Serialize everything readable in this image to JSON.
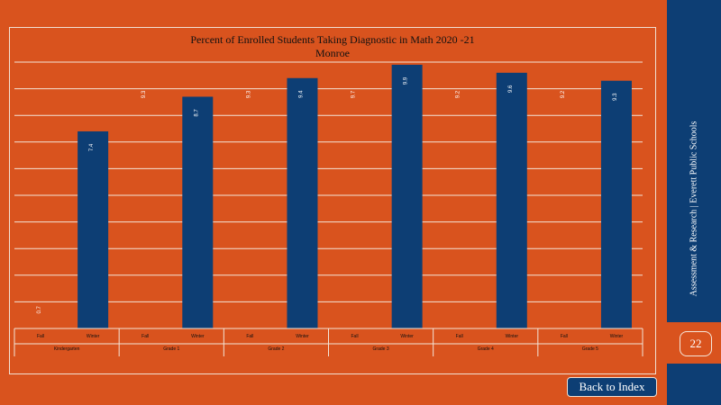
{
  "header": {
    "title": "Percent  of Enrolled Students Taking Diagnostic  in Math 2020  -21",
    "subtitle": "Monroe"
  },
  "sidebar": {
    "label": "Assessment  & Research |  Everett  Public Schools",
    "page_number": "22"
  },
  "nav": {
    "back_label": "Back to  Index"
  },
  "colors": {
    "background": "#d9531e",
    "bar": "#0d3e74",
    "grid": "#f3e4d8",
    "sidebar": "#0d3e74"
  },
  "chart_data": {
    "type": "bar",
    "title": "Percent  of Enrolled Students Taking Diagnostic  in Math 2020  -21",
    "subtitle": "Monroe",
    "groups": [
      "Kindergarten",
      "Grade 1",
      "Grade 2",
      "Grade 3",
      "Grade 4",
      "Grade 5"
    ],
    "seasons": [
      "Fall",
      "Winter"
    ],
    "series": [
      {
        "name": "Fall",
        "values": [
          0.7,
          9.3,
          9.3,
          9.7,
          9.2,
          9.2
        ]
      },
      {
        "name": "Winter",
        "values": [
          7.4,
          8.7,
          9.4,
          9.9,
          9.6,
          9.3
        ]
      }
    ],
    "labels": {
      "Fall": [
        "0.7",
        "9.3",
        "9.3",
        "9.7",
        "9.2",
        "9.2"
      ],
      "Winter": [
        "7.4",
        "8.7",
        "9.4",
        "9.9",
        "9.6",
        "9.3"
      ]
    },
    "ylim": [
      0,
      10
    ],
    "grid": true,
    "legend": "none"
  }
}
